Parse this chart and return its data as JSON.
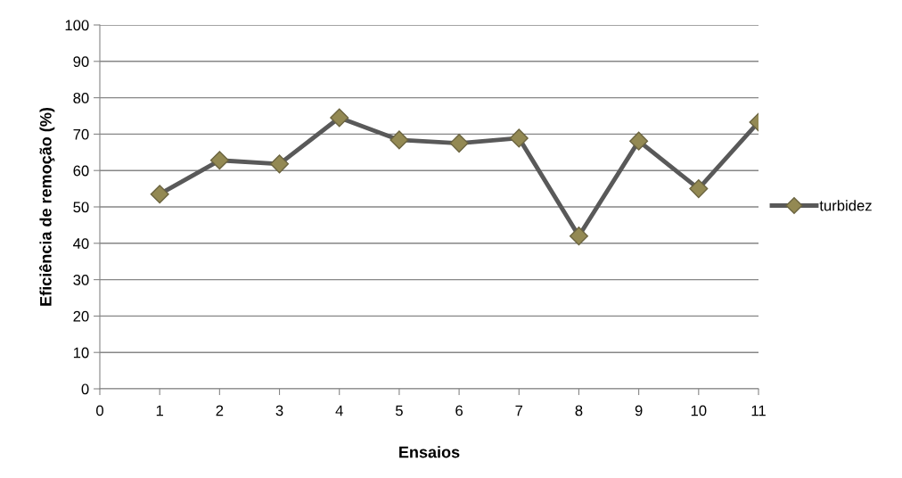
{
  "chart_data": {
    "type": "line",
    "xlabel": "Ensaios",
    "ylabel": "Eficiência de remoção (%)",
    "x": [
      1,
      2,
      3,
      4,
      5,
      6,
      7,
      8,
      9,
      10,
      11
    ],
    "series": [
      {
        "name": "turbidez",
        "color": "#595959",
        "colors": [
          "#938953",
          "#938953",
          "#938953",
          "#938953",
          "#938953",
          "#938953",
          "#938953",
          "#938953",
          "#938953",
          "#938953",
          "#938953"
        ],
        "values": [
          53.5,
          62.8,
          61.8,
          74.5,
          68.4,
          67.5,
          68.9,
          42,
          68.1,
          55,
          73.3
        ]
      }
    ],
    "xlim": [
      0,
      11
    ],
    "xticks": [
      0,
      1,
      2,
      3,
      4,
      5,
      6,
      7,
      8,
      9,
      10,
      11
    ],
    "ylim": [
      0,
      100
    ],
    "yticks": [
      0,
      10,
      20,
      30,
      40,
      50,
      60,
      70,
      80,
      90,
      100
    ],
    "grid": "y",
    "legend": "right",
    "marker": "diamond",
    "line_style": "solid"
  }
}
